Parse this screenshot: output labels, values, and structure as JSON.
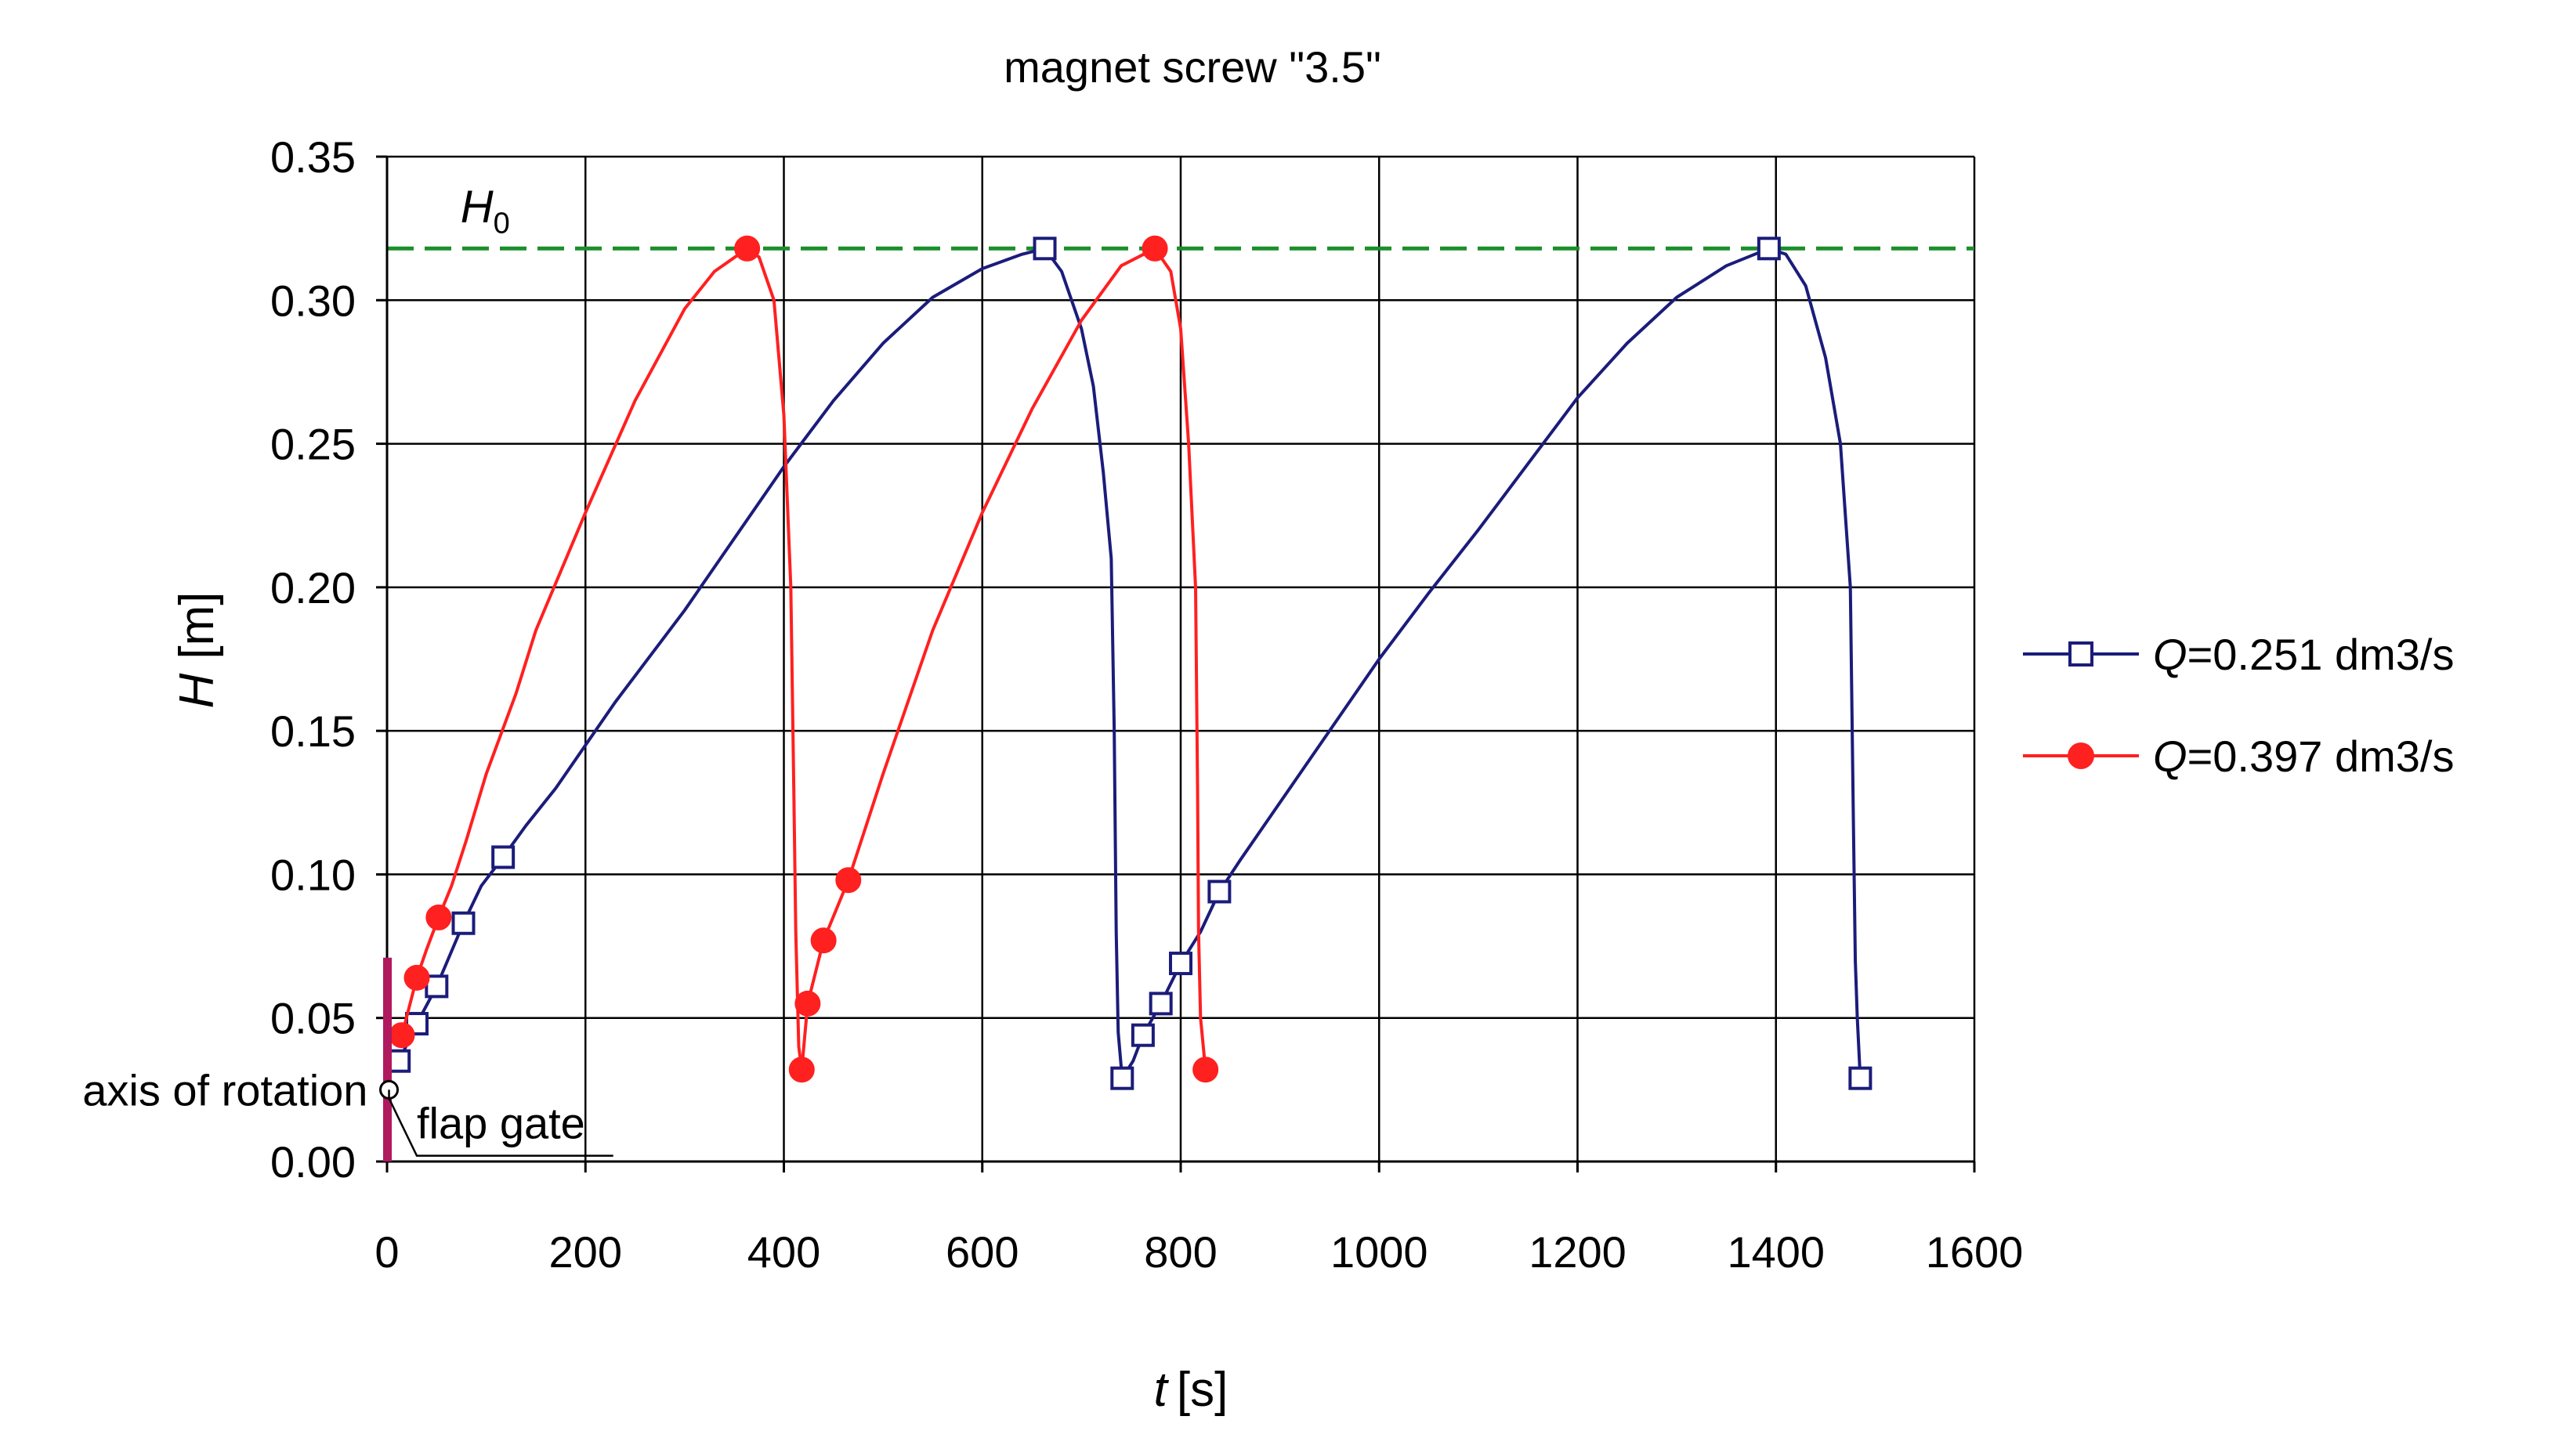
{
  "colors": {
    "blue_series": "#1b1c7a",
    "red_series": "#ff2020",
    "h0_line": "#1a8f2a",
    "grid": "#000000",
    "flap_gate": "#b0195e"
  },
  "chart_data": {
    "type": "line",
    "title": "magnet screw \"3.5\"",
    "xlabel": {
      "symbol": "t",
      "unit": "[s]"
    },
    "ylabel": {
      "symbol": "H",
      "unit": "[m]"
    },
    "xlim": [
      0,
      1600
    ],
    "ylim": [
      0,
      0.35
    ],
    "x_ticks": [
      0,
      200,
      400,
      600,
      800,
      1000,
      1200,
      1400,
      1600
    ],
    "y_ticks": [
      0.0,
      0.05,
      0.1,
      0.15,
      0.2,
      0.25,
      0.3,
      0.35
    ],
    "y_tick_labels": [
      "0.00",
      "0.05",
      "0.10",
      "0.15",
      "0.20",
      "0.25",
      "0.30",
      "0.35"
    ],
    "x_tick_labels": [
      "0",
      "200",
      "400",
      "600",
      "800",
      "1000",
      "1200",
      "1400",
      "1600"
    ],
    "grid": true,
    "legend_position": "right",
    "reference_line": {
      "label": "H",
      "subscript": "0",
      "value": 0.318,
      "style": "dashed"
    },
    "annotations": [
      {
        "text": "axis of rotation",
        "x": 5,
        "y": 0.025
      },
      {
        "text": "flap gate",
        "x": 5,
        "y": 0.012
      }
    ],
    "series": [
      {
        "name": "Q=0.251 dm3/s",
        "legend_symbol": "Q",
        "legend_value": "=0.251 dm3/s",
        "marker": "open-square",
        "color_key": "blue_series",
        "curve": [
          [
            12,
            0.035
          ],
          [
            30,
            0.048
          ],
          [
            50,
            0.061
          ],
          [
            77,
            0.083
          ],
          [
            95,
            0.096
          ],
          [
            117,
            0.106
          ],
          [
            140,
            0.117
          ],
          [
            170,
            0.13
          ],
          [
            200,
            0.145
          ],
          [
            230,
            0.16
          ],
          [
            300,
            0.192
          ],
          [
            350,
            0.217
          ],
          [
            400,
            0.242
          ],
          [
            450,
            0.265
          ],
          [
            500,
            0.285
          ],
          [
            550,
            0.301
          ],
          [
            600,
            0.311
          ],
          [
            640,
            0.316
          ],
          [
            663,
            0.318
          ],
          [
            680,
            0.31
          ],
          [
            700,
            0.29
          ],
          [
            712,
            0.27
          ],
          [
            722,
            0.24
          ],
          [
            730,
            0.21
          ],
          [
            733,
            0.15
          ],
          [
            735,
            0.08
          ],
          [
            737,
            0.045
          ],
          [
            741,
            0.029
          ],
          [
            752,
            0.035
          ],
          [
            762,
            0.044
          ],
          [
            780,
            0.055
          ],
          [
            800,
            0.069
          ],
          [
            820,
            0.08
          ],
          [
            839,
            0.094
          ],
          [
            860,
            0.105
          ],
          [
            900,
            0.125
          ],
          [
            950,
            0.15
          ],
          [
            1000,
            0.175
          ],
          [
            1050,
            0.198
          ],
          [
            1100,
            0.22
          ],
          [
            1150,
            0.243
          ],
          [
            1200,
            0.266
          ],
          [
            1250,
            0.285
          ],
          [
            1300,
            0.301
          ],
          [
            1350,
            0.312
          ],
          [
            1393,
            0.318
          ],
          [
            1410,
            0.316
          ],
          [
            1430,
            0.305
          ],
          [
            1450,
            0.28
          ],
          [
            1465,
            0.25
          ],
          [
            1475,
            0.2
          ],
          [
            1478,
            0.12
          ],
          [
            1480,
            0.07
          ],
          [
            1482,
            0.05
          ],
          [
            1485,
            0.029
          ]
        ],
        "markers": [
          [
            12,
            0.035
          ],
          [
            30,
            0.048
          ],
          [
            50,
            0.061
          ],
          [
            77,
            0.083
          ],
          [
            117,
            0.106
          ],
          [
            663,
            0.318
          ],
          [
            741,
            0.029
          ],
          [
            762,
            0.044
          ],
          [
            780,
            0.055
          ],
          [
            800,
            0.069
          ],
          [
            839,
            0.094
          ],
          [
            1393,
            0.318
          ],
          [
            1485,
            0.029
          ]
        ]
      },
      {
        "name": "Q=0.397 dm3/s",
        "legend_symbol": "Q",
        "legend_value": "=0.397 dm3/s",
        "marker": "filled-circle",
        "color_key": "red_series",
        "curve": [
          [
            15,
            0.044
          ],
          [
            30,
            0.064
          ],
          [
            40,
            0.074
          ],
          [
            52,
            0.085
          ],
          [
            65,
            0.096
          ],
          [
            80,
            0.112
          ],
          [
            100,
            0.135
          ],
          [
            130,
            0.163
          ],
          [
            150,
            0.185
          ],
          [
            200,
            0.226
          ],
          [
            250,
            0.265
          ],
          [
            300,
            0.297
          ],
          [
            330,
            0.31
          ],
          [
            363,
            0.318
          ],
          [
            375,
            0.315
          ],
          [
            390,
            0.3
          ],
          [
            400,
            0.26
          ],
          [
            407,
            0.2
          ],
          [
            410,
            0.13
          ],
          [
            412,
            0.08
          ],
          [
            415,
            0.04
          ],
          [
            418,
            0.032
          ],
          [
            424,
            0.055
          ],
          [
            440,
            0.077
          ],
          [
            465,
            0.098
          ],
          [
            500,
            0.135
          ],
          [
            550,
            0.185
          ],
          [
            600,
            0.226
          ],
          [
            650,
            0.262
          ],
          [
            700,
            0.293
          ],
          [
            740,
            0.312
          ],
          [
            774,
            0.318
          ],
          [
            790,
            0.31
          ],
          [
            800,
            0.29
          ],
          [
            808,
            0.25
          ],
          [
            815,
            0.2
          ],
          [
            817,
            0.13
          ],
          [
            818,
            0.08
          ],
          [
            820,
            0.05
          ],
          [
            825,
            0.032
          ]
        ],
        "markers": [
          [
            15,
            0.044
          ],
          [
            30,
            0.064
          ],
          [
            52,
            0.085
          ],
          [
            363,
            0.318
          ],
          [
            418,
            0.032
          ],
          [
            424,
            0.055
          ],
          [
            440,
            0.077
          ],
          [
            465,
            0.098
          ],
          [
            774,
            0.318
          ],
          [
            825,
            0.032
          ]
        ]
      }
    ]
  }
}
